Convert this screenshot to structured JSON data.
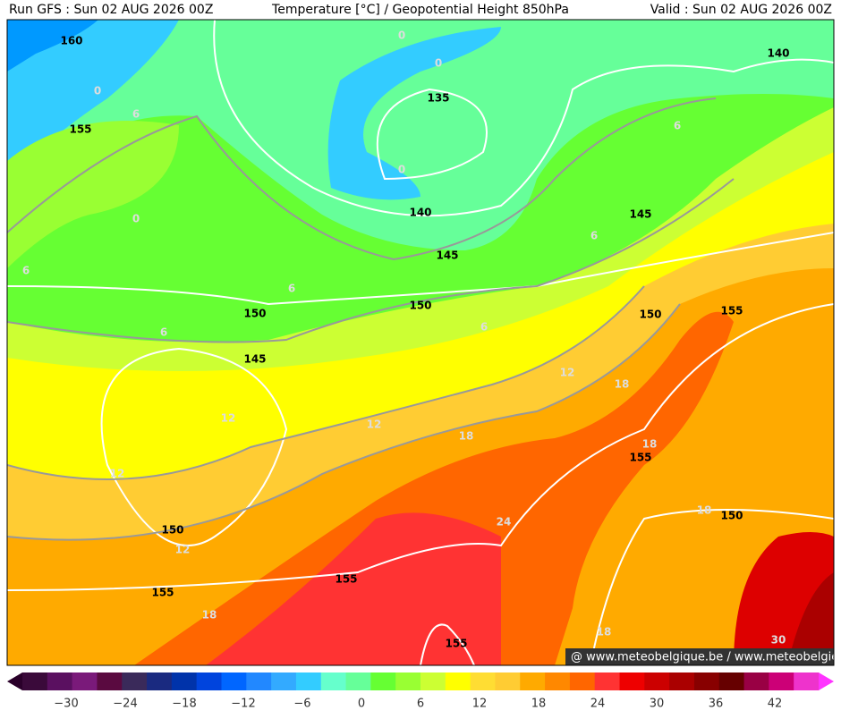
{
  "header": {
    "left": "Run GFS : Sun 02 AUG 2026 00Z",
    "center": "Temperature [°C] / Geopotential Height 850hPa",
    "right": "Valid : Sun 02 AUG 2026 00Z"
  },
  "contour_labels": [
    "160",
    "155",
    "135",
    "140",
    "145",
    "150",
    "150",
    "145",
    "150",
    "155",
    "145",
    "140",
    "155",
    "150",
    "150",
    "155",
    "155",
    "155",
    "0",
    "0",
    "0",
    "0",
    "0",
    "6",
    "6",
    "6",
    "6",
    "6",
    "6",
    "6",
    "12",
    "12",
    "12",
    "12",
    "12",
    "18",
    "18",
    "18",
    "18",
    "18",
    "18",
    "24",
    "30"
  ],
  "credit": "@ www.meteobelgique.be / www.meteobelgie.be",
  "colorbar": {
    "labels": [
      "−30",
      "−24",
      "−18",
      "−12",
      "−6",
      "0",
      "6",
      "12",
      "18",
      "24",
      "30",
      "36",
      "42"
    ]
  }
}
